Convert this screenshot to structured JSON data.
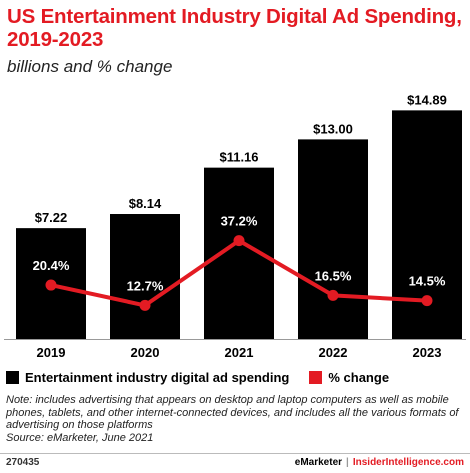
{
  "chart_data": {
    "type": "bar",
    "title": "US Entertainment Industry Digital Ad Spending, 2019-2023",
    "subtitle": "billions and % change",
    "categories": [
      "2019",
      "2020",
      "2021",
      "2022",
      "2023"
    ],
    "series": [
      {
        "name": "Entertainment industry digital ad spending",
        "type": "bar",
        "values": [
          7.22,
          8.14,
          11.16,
          13.0,
          14.89
        ],
        "labels": [
          "$7.22",
          "$8.14",
          "$11.16",
          "$13.00",
          "$14.89"
        ],
        "color": "#000000"
      },
      {
        "name": "% change",
        "type": "line",
        "values": [
          20.4,
          12.7,
          37.2,
          16.5,
          14.5
        ],
        "labels": [
          "20.4%",
          "12.7%",
          "37.2%",
          "16.5%",
          "14.5%"
        ],
        "color": "#e31b23"
      }
    ],
    "bar_ylim": [
      0,
      15.5
    ],
    "pct_ylim": [
      0,
      90
    ],
    "grid": false,
    "legend_position": "bottom-left"
  },
  "note": "Note: includes advertising that appears on desktop and laptop computers as well as mobile phones, tablets, and other internet-connected devices, and includes all the various formats of advertising on those platforms",
  "source": "Source: eMarketer, June 2021",
  "footer": {
    "chart_id": "270435",
    "brand_emarketer": "eMarketer",
    "separator": "|",
    "brand_insider": "InsiderIntelligence.com"
  },
  "colors": {
    "accent": "#e31b23",
    "bar": "#000000"
  }
}
